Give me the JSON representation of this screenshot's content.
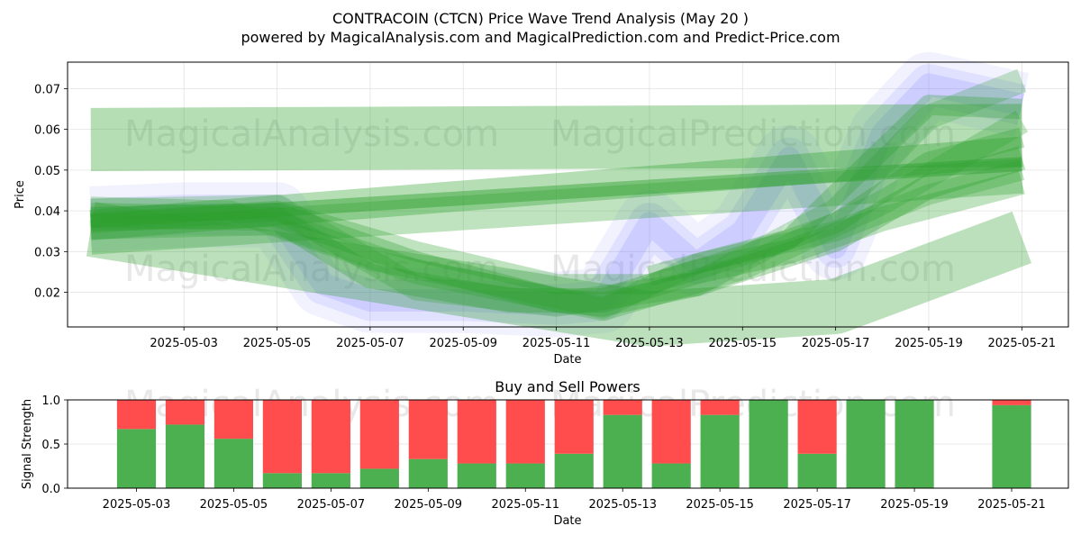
{
  "header": {
    "title": "CONTRACOIN (CTCN) Price Wave Trend Analysis (May 20 )",
    "subtitle": "powered by MagicalAnalysis.com and MagicalPrediction.com and Predict-Price.com"
  },
  "watermarks": [
    "MagicalAnalysis.com",
    "MagicalPrediction.com"
  ],
  "colors": {
    "green_band": "#2ca02c",
    "blue_band": "#7b7bff",
    "buy": "#4caf50",
    "sell": "#ff4c4c"
  },
  "chart_data": [
    {
      "type": "area",
      "title": "",
      "xlabel": "Date",
      "ylabel": "Price",
      "xlim": [
        "2025-04-30T12:00",
        "2025-05-22T00:00"
      ],
      "ylim": [
        0.0115,
        0.0765
      ],
      "x_ticks": [
        "2025-05-03",
        "2025-05-05",
        "2025-05-07",
        "2025-05-09",
        "2025-05-11",
        "2025-05-13",
        "2025-05-15",
        "2025-05-17",
        "2025-05-19",
        "2025-05-21"
      ],
      "y_ticks": [
        0.02,
        0.03,
        0.04,
        0.05,
        0.06,
        0.07
      ],
      "y_tick_labels": [
        "0.02",
        "0.03",
        "0.04",
        "0.05",
        "0.06",
        "0.07"
      ],
      "grid": true,
      "price_path": {
        "dates": [
          "2025-05-01",
          "2025-05-03",
          "2025-05-05",
          "2025-05-06",
          "2025-05-07",
          "2025-05-09",
          "2025-05-11",
          "2025-05-12",
          "2025-05-13",
          "2025-05-14",
          "2025-05-15",
          "2025-05-16",
          "2025-05-17",
          "2025-05-18",
          "2025-05-19",
          "2025-05-21"
        ],
        "values": [
          0.038,
          0.039,
          0.039,
          0.022,
          0.018,
          0.018,
          0.017,
          0.018,
          0.037,
          0.027,
          0.035,
          0.053,
          0.031,
          0.059,
          0.071,
          0.066
        ]
      },
      "wave_bands": [
        {
          "x": [
            "2025-05-01",
            "2025-05-21"
          ],
          "y": [
            0.0575,
            0.0585
          ],
          "width": 0.0155,
          "opacity": 0.35
        },
        {
          "x": [
            "2025-05-01",
            "2025-05-21"
          ],
          "y": [
            0.0365,
            0.0545
          ],
          "width": 0.0075,
          "opacity": 0.35
        },
        {
          "x": [
            "2025-05-01",
            "2025-05-21"
          ],
          "y": [
            0.0335,
            0.0485
          ],
          "width": 0.0085,
          "opacity": 0.3
        },
        {
          "x": [
            "2025-05-01",
            "2025-05-13",
            "2025-05-17",
            "2025-05-21"
          ],
          "y": [
            0.0355,
            0.0135,
            0.0165,
            0.0335
          ],
          "width": 0.0135,
          "opacity": 0.32
        },
        {
          "x": [
            "2025-05-01",
            "2025-05-05",
            "2025-05-08",
            "2025-05-11",
            "2025-05-12",
            "2025-05-14",
            "2025-05-17",
            "2025-05-19",
            "2025-05-21"
          ],
          "y": [
            0.038,
            0.039,
            0.027,
            0.018,
            0.017,
            0.022,
            0.033,
            0.046,
            0.053
          ],
          "width": 0.006,
          "opacity": 0.32
        },
        {
          "x": [
            "2025-05-01",
            "2025-05-05",
            "2025-05-08",
            "2025-05-11",
            "2025-05-13",
            "2025-05-15",
            "2025-05-17",
            "2025-05-19",
            "2025-05-21"
          ],
          "y": [
            0.037,
            0.04,
            0.03,
            0.022,
            0.022,
            0.029,
            0.037,
            0.052,
            0.058
          ],
          "width": 0.005,
          "opacity": 0.3
        },
        {
          "x": [
            "2025-05-01",
            "2025-05-05",
            "2025-05-07",
            "2025-05-10",
            "2025-05-12",
            "2025-05-14",
            "2025-05-16",
            "2025-05-18",
            "2025-05-21"
          ],
          "y": [
            0.039,
            0.038,
            0.024,
            0.018,
            0.018,
            0.025,
            0.03,
            0.038,
            0.047
          ],
          "width": 0.006,
          "opacity": 0.3
        },
        {
          "x": [
            "2025-05-01",
            "2025-05-04",
            "2025-05-07",
            "2025-05-10",
            "2025-05-12",
            "2025-05-14",
            "2025-05-17",
            "2025-05-19",
            "2025-05-21"
          ],
          "y": [
            0.041,
            0.04,
            0.028,
            0.021,
            0.016,
            0.027,
            0.035,
            0.044,
            0.05
          ],
          "width": 0.005,
          "opacity": 0.28
        },
        {
          "x": [
            "2025-05-01",
            "2025-05-05",
            "2025-05-08",
            "2025-05-12",
            "2025-05-15",
            "2025-05-18",
            "2025-05-21"
          ],
          "y": [
            0.036,
            0.037,
            0.025,
            0.016,
            0.026,
            0.042,
            0.062
          ],
          "width": 0.006,
          "opacity": 0.28
        },
        {
          "x": [
            "2025-05-01",
            "2025-05-05",
            "2025-05-08",
            "2025-05-11",
            "2025-05-14",
            "2025-05-17",
            "2025-05-19",
            "2025-05-21"
          ],
          "y": [
            0.04,
            0.041,
            0.021,
            0.017,
            0.022,
            0.04,
            0.063,
            0.072
          ],
          "width": 0.006,
          "opacity": 0.26
        },
        {
          "x": [
            "2025-05-13",
            "2025-05-16",
            "2025-05-18",
            "2025-05-19",
            "2025-05-21"
          ],
          "y": [
            0.024,
            0.033,
            0.055,
            0.066,
            0.065
          ],
          "width": 0.005,
          "opacity": 0.3
        },
        {
          "x": [
            "2025-05-01",
            "2025-05-21"
          ],
          "y": [
            0.0375,
            0.0515
          ],
          "width": 0.0035,
          "opacity": 0.45
        }
      ]
    },
    {
      "type": "bar",
      "title": "Buy and Sell Powers",
      "xlabel": "Date",
      "ylabel": "Signal Strength",
      "ylim": [
        0,
        1
      ],
      "y_ticks": [
        0,
        0.5,
        1
      ],
      "y_tick_labels": [
        "0.0",
        "0.5",
        "1.0"
      ],
      "x_ticks": [
        "2025-05-03",
        "2025-05-05",
        "2025-05-07",
        "2025-05-09",
        "2025-05-11",
        "2025-05-13",
        "2025-05-15",
        "2025-05-17",
        "2025-05-19",
        "2025-05-21"
      ],
      "categories": [
        "2025-05-03",
        "2025-05-04",
        "2025-05-05",
        "2025-05-06",
        "2025-05-07",
        "2025-05-08",
        "2025-05-09",
        "2025-05-10",
        "2025-05-11",
        "2025-05-12",
        "2025-05-13",
        "2025-05-14",
        "2025-05-15",
        "2025-05-16",
        "2025-05-17",
        "2025-05-18",
        "2025-05-19",
        "2025-05-21"
      ],
      "series": [
        {
          "values": [
            0.67,
            0.72,
            0.56,
            0.17,
            0.17,
            0.22,
            0.33,
            0.28,
            0.28,
            0.39,
            0.83,
            0.28,
            0.83,
            1.0,
            0.39,
            1.0,
            1.0,
            0.94
          ]
        },
        {
          "values": [
            0.33,
            0.28,
            0.44,
            0.83,
            0.83,
            0.78,
            0.67,
            0.72,
            0.72,
            0.61,
            0.17,
            0.72,
            0.17,
            0.0,
            0.61,
            0.0,
            0.0,
            0.06
          ]
        }
      ],
      "xlim": [
        "2025-05-01T14:00",
        "2025-05-22T04:00"
      ]
    }
  ]
}
